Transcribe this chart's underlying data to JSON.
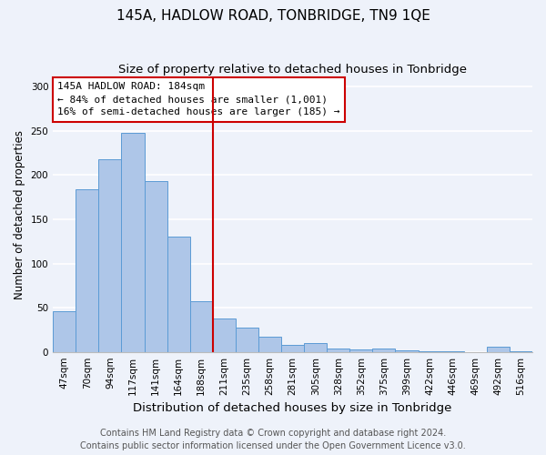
{
  "title": "145A, HADLOW ROAD, TONBRIDGE, TN9 1QE",
  "subtitle": "Size of property relative to detached houses in Tonbridge",
  "xlabel": "Distribution of detached houses by size in Tonbridge",
  "ylabel": "Number of detached properties",
  "categories": [
    "47sqm",
    "70sqm",
    "94sqm",
    "117sqm",
    "141sqm",
    "164sqm",
    "188sqm",
    "211sqm",
    "235sqm",
    "258sqm",
    "281sqm",
    "305sqm",
    "328sqm",
    "352sqm",
    "375sqm",
    "399sqm",
    "422sqm",
    "446sqm",
    "469sqm",
    "492sqm",
    "516sqm"
  ],
  "values": [
    46,
    184,
    218,
    248,
    193,
    130,
    57,
    38,
    27,
    17,
    8,
    10,
    4,
    3,
    4,
    2,
    1,
    1,
    0,
    6,
    1
  ],
  "bar_color": "#aec6e8",
  "bar_edge_color": "#5b9bd5",
  "highlight_index": 6,
  "highlight_line_color": "#cc0000",
  "annotation_text": "145A HADLOW ROAD: 184sqm\n← 84% of detached houses are smaller (1,001)\n16% of semi-detached houses are larger (185) →",
  "annotation_box_color": "white",
  "annotation_box_edge_color": "#cc0000",
  "ylim": [
    0,
    310
  ],
  "yticks": [
    0,
    50,
    100,
    150,
    200,
    250,
    300
  ],
  "footer_line1": "Contains HM Land Registry data © Crown copyright and database right 2024.",
  "footer_line2": "Contains public sector information licensed under the Open Government Licence v3.0.",
  "bg_color": "#eef2fa",
  "grid_color": "white",
  "title_fontsize": 11,
  "subtitle_fontsize": 9.5,
  "xlabel_fontsize": 9.5,
  "ylabel_fontsize": 8.5,
  "tick_fontsize": 7.5,
  "annotation_fontsize": 8,
  "footer_fontsize": 7
}
